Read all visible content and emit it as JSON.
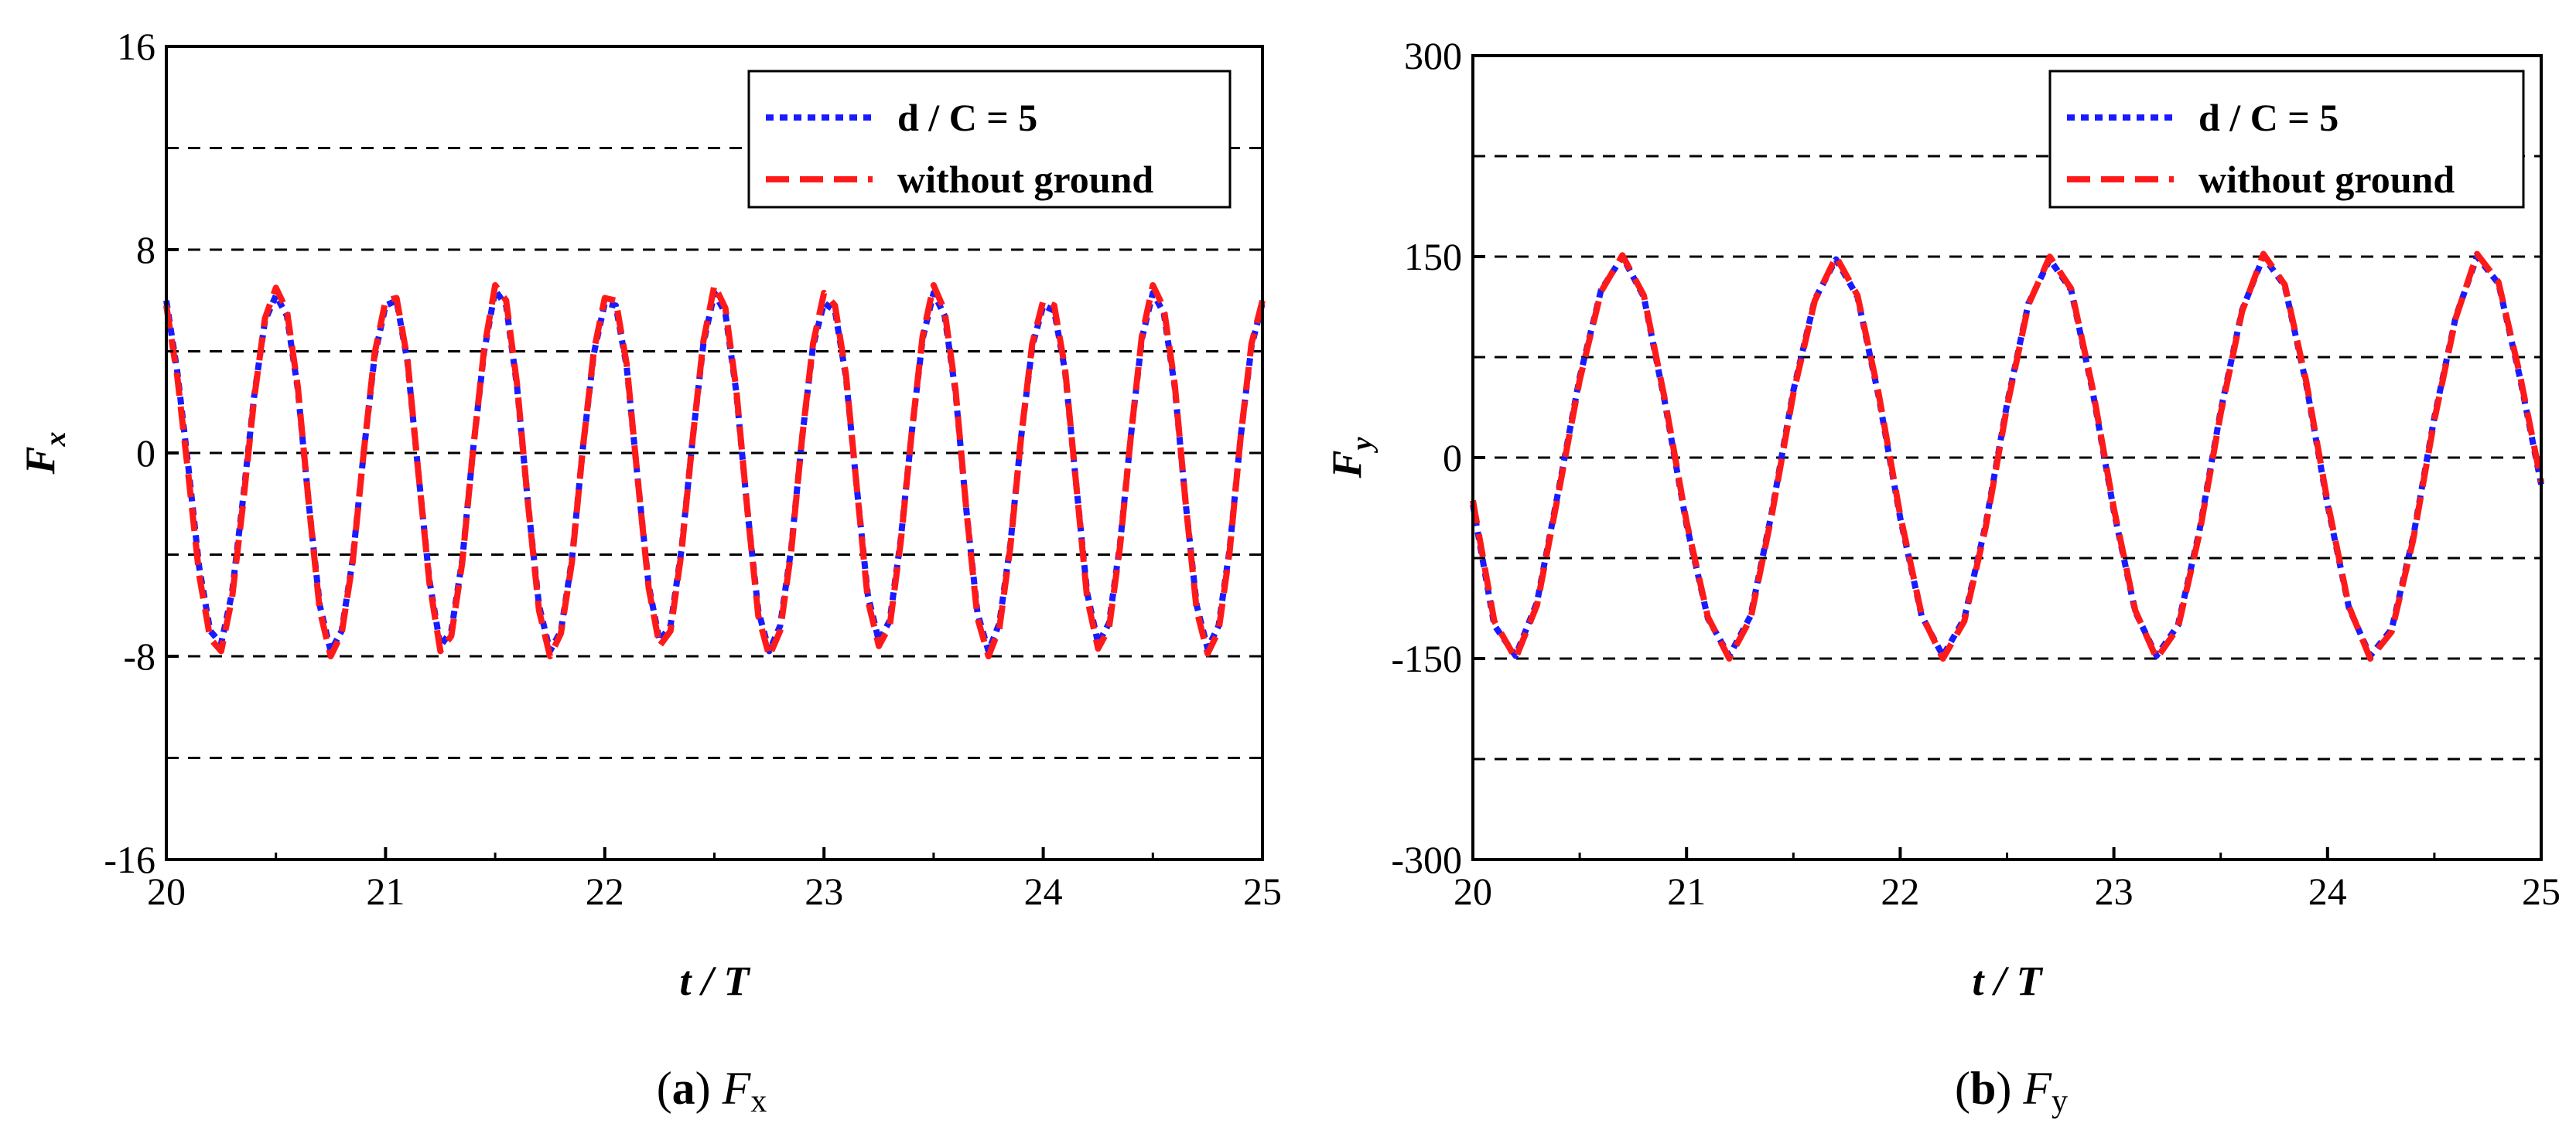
{
  "chart_data": [
    {
      "type": "line",
      "panel": "a",
      "caption_letter": "a",
      "caption_symbol": "F",
      "caption_sub": "x",
      "xlabel": "t / T",
      "ylabel_main": "F",
      "ylabel_sub": "x",
      "xlim": [
        20,
        25
      ],
      "ylim": [
        -16,
        16
      ],
      "xticks": [
        20,
        21,
        22,
        23,
        24,
        25
      ],
      "xtick_labels": [
        "20",
        "21",
        "22",
        "23",
        "24",
        "25"
      ],
      "yticks": [
        -16,
        -8,
        0,
        8,
        16
      ],
      "ytick_labels": [
        "-16",
        "-8",
        "0",
        "8",
        "16"
      ],
      "gridlines": [
        -12,
        -8,
        -4,
        0,
        4,
        8,
        12
      ],
      "legend_position": "top-right",
      "legend": {
        "series1_label": "d / C = 5",
        "series2_label": "without ground"
      },
      "series": [
        {
          "name": "d / C = 5",
          "color": "#1a1aff",
          "dash": "dotted",
          "x": [
            20.0,
            20.05,
            20.1,
            20.15,
            20.2,
            20.25,
            20.3,
            20.35,
            20.4,
            20.45,
            20.5,
            20.55,
            20.6,
            20.65,
            20.7,
            20.75,
            20.8,
            20.85,
            20.9,
            20.95,
            21.0,
            21.05,
            21.1,
            21.15,
            21.2,
            21.25,
            21.3,
            21.35,
            21.4,
            21.45,
            21.5,
            21.55,
            21.6,
            21.65,
            21.7,
            21.75,
            21.8,
            21.85,
            21.9,
            21.95,
            22.0,
            22.05,
            22.1,
            22.15,
            22.2,
            22.25,
            22.3,
            22.35,
            22.4,
            22.45,
            22.5,
            22.55,
            22.6,
            22.65,
            22.7,
            22.75,
            22.8,
            22.85,
            22.9,
            22.95,
            23.0,
            23.05,
            23.1,
            23.15,
            23.2,
            23.25,
            23.3,
            23.35,
            23.4,
            23.45,
            23.5,
            23.55,
            23.6,
            23.65,
            23.7,
            23.75,
            23.8,
            23.85,
            23.9,
            23.95,
            24.0,
            24.05,
            24.1,
            24.15,
            24.2,
            24.25,
            24.3,
            24.35,
            24.4,
            24.45,
            24.5,
            24.55,
            24.6,
            24.65,
            24.7,
            24.75,
            24.8,
            24.85,
            24.9,
            24.95,
            25.0
          ],
          "y": [
            6.0,
            3.2,
            -0.5,
            -4.5,
            -7.0,
            -7.5,
            -5.5,
            -1.8,
            2.2,
            5.2,
            6.2,
            5.4,
            2.5,
            -2.0,
            -6.0,
            -7.8,
            -7.0,
            -4.2,
            0.0,
            3.8,
            5.8,
            6.0,
            3.6,
            -0.8,
            -5.0,
            -7.6,
            -7.0,
            -4.2,
            0.2,
            4.0,
            6.4,
            5.8,
            2.6,
            -2.0,
            -6.0,
            -7.8,
            -7.0,
            -4.2,
            0.2,
            3.9,
            5.9,
            5.8,
            3.4,
            -1.0,
            -5.2,
            -7.4,
            -6.8,
            -3.8,
            0.5,
            4.3,
            6.3,
            5.5,
            2.4,
            -2.2,
            -6.2,
            -7.8,
            -6.8,
            -3.8,
            0.6,
            4.2,
            5.9,
            5.6,
            3.0,
            -1.4,
            -5.6,
            -7.4,
            -6.6,
            -3.4,
            0.8,
            4.5,
            6.3,
            5.4,
            2.4,
            -2.3,
            -6.3,
            -7.8,
            -6.7,
            -3.6,
            0.7,
            4.2,
            5.8,
            5.6,
            3.2,
            -1.2,
            -5.5,
            -7.5,
            -6.7,
            -3.6,
            0.7,
            4.5,
            6.3,
            5.5,
            2.6,
            -2.0,
            -6.0,
            -7.7,
            -6.8,
            -3.8,
            0.6,
            4.2,
            5.9
          ]
        },
        {
          "name": "without ground",
          "color": "#ff1a1a",
          "dash": "dashed",
          "x": [
            20.0,
            20.05,
            20.1,
            20.15,
            20.2,
            20.25,
            20.3,
            20.35,
            20.4,
            20.45,
            20.5,
            20.55,
            20.6,
            20.65,
            20.7,
            20.75,
            20.8,
            20.85,
            20.9,
            20.95,
            21.0,
            21.05,
            21.1,
            21.15,
            21.2,
            21.25,
            21.3,
            21.35,
            21.4,
            21.45,
            21.5,
            21.55,
            21.6,
            21.65,
            21.7,
            21.75,
            21.8,
            21.85,
            21.9,
            21.95,
            22.0,
            22.05,
            22.1,
            22.15,
            22.2,
            22.25,
            22.3,
            22.35,
            22.4,
            22.45,
            22.5,
            22.55,
            22.6,
            22.65,
            22.7,
            22.75,
            22.8,
            22.85,
            22.9,
            22.95,
            23.0,
            23.05,
            23.1,
            23.15,
            23.2,
            23.25,
            23.3,
            23.35,
            23.4,
            23.45,
            23.5,
            23.55,
            23.6,
            23.65,
            23.7,
            23.75,
            23.8,
            23.85,
            23.9,
            23.95,
            24.0,
            24.05,
            24.1,
            24.15,
            24.2,
            24.25,
            24.3,
            24.35,
            24.4,
            24.45,
            24.5,
            24.55,
            24.6,
            24.65,
            24.7,
            24.75,
            24.8,
            24.85,
            24.9,
            24.95,
            25.0
          ],
          "y": [
            5.8,
            3.0,
            -0.8,
            -4.8,
            -7.3,
            -7.8,
            -5.7,
            -2.0,
            2.1,
            5.3,
            6.5,
            5.6,
            2.6,
            -2.0,
            -6.2,
            -8.0,
            -7.1,
            -4.3,
            0.0,
            3.9,
            6.0,
            6.1,
            3.7,
            -0.8,
            -5.1,
            -7.8,
            -7.2,
            -4.3,
            0.2,
            4.1,
            6.6,
            6.0,
            2.7,
            -2.0,
            -6.2,
            -8.0,
            -7.1,
            -4.3,
            0.2,
            4.0,
            6.1,
            6.0,
            3.5,
            -1.0,
            -5.3,
            -7.6,
            -7.0,
            -3.9,
            0.5,
            4.4,
            6.6,
            5.7,
            2.5,
            -2.2,
            -6.4,
            -8.0,
            -7.0,
            -3.9,
            0.6,
            4.3,
            6.3,
            5.8,
            3.1,
            -1.4,
            -5.8,
            -7.6,
            -6.8,
            -3.5,
            0.8,
            4.6,
            6.6,
            5.6,
            2.5,
            -2.3,
            -6.5,
            -8.0,
            -6.9,
            -3.7,
            0.7,
            4.3,
            6.0,
            5.8,
            3.3,
            -1.2,
            -5.7,
            -7.7,
            -6.9,
            -3.7,
            0.7,
            4.6,
            6.6,
            5.7,
            2.7,
            -2.0,
            -6.2,
            -7.9,
            -7.0,
            -3.9,
            0.6,
            4.3,
            6.0
          ]
        }
      ]
    },
    {
      "type": "line",
      "panel": "b",
      "caption_letter": "b",
      "caption_symbol": "F",
      "caption_sub": "y",
      "xlabel": "t / T",
      "ylabel_main": "F",
      "ylabel_sub": "y",
      "xlim": [
        20,
        25
      ],
      "ylim": [
        -300,
        300
      ],
      "xticks": [
        20,
        21,
        22,
        23,
        24,
        25
      ],
      "xtick_labels": [
        "20",
        "21",
        "22",
        "23",
        "24",
        "25"
      ],
      "yticks": [
        -300,
        -150,
        0,
        150,
        300
      ],
      "ytick_labels": [
        "-300",
        "-150",
        "0",
        "150",
        "300"
      ],
      "gridlines": [
        -225,
        -150,
        -75,
        0,
        75,
        150,
        225
      ],
      "legend_position": "top-right",
      "legend": {
        "series1_label": "d / C = 5",
        "series2_label": "without ground"
      },
      "series": [
        {
          "name": "d / C = 5",
          "color": "#1a1aff",
          "dash": "dotted",
          "x": [
            20.0,
            20.1,
            20.2,
            20.3,
            20.4,
            20.5,
            20.6,
            20.7,
            20.8,
            20.9,
            21.0,
            21.1,
            21.2,
            21.3,
            21.4,
            21.5,
            21.6,
            21.7,
            21.8,
            21.9,
            22.0,
            22.1,
            22.2,
            22.3,
            22.4,
            22.5,
            22.6,
            22.7,
            22.8,
            22.9,
            23.0,
            23.1,
            23.2,
            23.3,
            23.4,
            23.5,
            23.6,
            23.7,
            23.8,
            23.9,
            24.0,
            24.1,
            24.2,
            24.3,
            24.4,
            24.5,
            24.6,
            24.7,
            24.8,
            24.9,
            25.0
          ],
          "y": [
            -35,
            -125,
            -148,
            -108,
            -25,
            60,
            125,
            150,
            120,
            40,
            -50,
            -120,
            -148,
            -118,
            -40,
            50,
            118,
            148,
            120,
            45,
            -45,
            -118,
            -148,
            -120,
            -50,
            40,
            115,
            148,
            125,
            50,
            -40,
            -115,
            -148,
            -125,
            -55,
            35,
            110,
            150,
            128,
            55,
            -35,
            -112,
            -148,
            -128,
            -60,
            30,
            105,
            150,
            130,
            60,
            -20
          ]
        },
        {
          "name": "without ground",
          "color": "#ff1a1a",
          "dash": "dashed",
          "x": [
            20.0,
            20.1,
            20.2,
            20.3,
            20.4,
            20.5,
            20.6,
            20.7,
            20.8,
            20.9,
            21.0,
            21.1,
            21.2,
            21.3,
            21.4,
            21.5,
            21.6,
            21.7,
            21.8,
            21.9,
            22.0,
            22.1,
            22.2,
            22.3,
            22.4,
            22.5,
            22.6,
            22.7,
            22.8,
            22.9,
            23.0,
            23.1,
            23.2,
            23.3,
            23.4,
            23.5,
            23.6,
            23.7,
            23.8,
            23.9,
            24.0,
            24.1,
            24.2,
            24.3,
            24.4,
            24.5,
            24.6,
            24.7,
            24.8,
            24.9,
            25.0
          ],
          "y": [
            -32,
            -122,
            -150,
            -110,
            -27,
            58,
            124,
            151,
            121,
            42,
            -48,
            -119,
            -150,
            -120,
            -42,
            48,
            117,
            150,
            121,
            47,
            -43,
            -117,
            -150,
            -122,
            -52,
            38,
            114,
            150,
            126,
            52,
            -38,
            -114,
            -150,
            -127,
            -57,
            33,
            109,
            152,
            129,
            57,
            -33,
            -111,
            -150,
            -130,
            -62,
            28,
            104,
            152,
            131,
            62,
            -18
          ]
        }
      ]
    }
  ]
}
